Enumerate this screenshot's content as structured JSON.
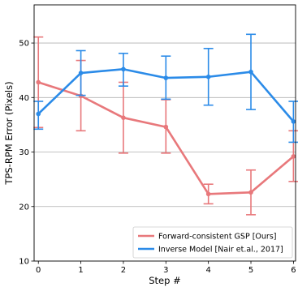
{
  "chart_data": {
    "type": "line",
    "title": "",
    "xlabel": "Step #",
    "ylabel": "TPS-RPM Error (Pixels)",
    "x": [
      0,
      1,
      2,
      3,
      4,
      5,
      6
    ],
    "xlim": [
      -0.1,
      6.05
    ],
    "ylim": [
      10,
      57
    ],
    "xticks": [
      "0",
      "1",
      "2",
      "3",
      "4",
      "5",
      "6"
    ],
    "yticks": [
      "10",
      "20",
      "30",
      "40",
      "50"
    ],
    "grid": "horizontal",
    "legend": "bottom-right",
    "series": [
      {
        "name": "Forward-consistent GSP [Ours]",
        "color": "#e8787b",
        "values": [
          42.8,
          40.3,
          36.3,
          34.6,
          22.3,
          22.6,
          29.2
        ],
        "err_low": [
          34.5,
          33.9,
          29.8,
          29.8,
          20.5,
          18.5,
          24.6
        ],
        "err_high": [
          51.1,
          46.8,
          42.8,
          39.6,
          24.1,
          26.7,
          33.9
        ]
      },
      {
        "name": "Inverse Model [Nair et.al., 2017]",
        "color": "#2b8be8",
        "values": [
          37.0,
          44.5,
          45.2,
          43.6,
          43.8,
          44.7,
          35.6
        ],
        "err_low": [
          34.2,
          40.4,
          42.1,
          39.7,
          38.6,
          37.8,
          31.8
        ],
        "err_high": [
          39.3,
          48.6,
          48.1,
          47.6,
          49.0,
          51.6,
          39.3
        ]
      }
    ]
  }
}
